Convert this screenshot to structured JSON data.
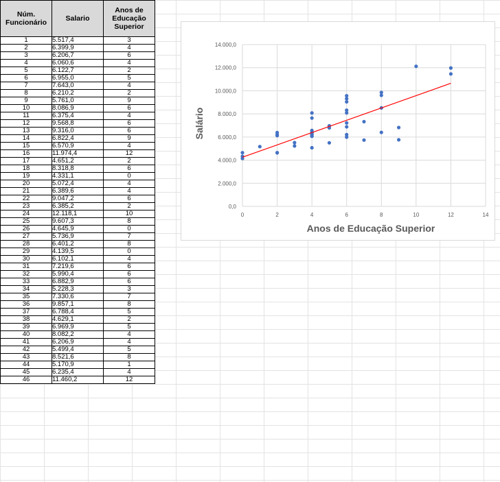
{
  "table": {
    "headers": [
      "Núm. Funcionário",
      "Salario",
      "Anos de Educação Superior"
    ],
    "rows": [
      [
        "1",
        "5.517,4",
        "3"
      ],
      [
        "2",
        "6.399,9",
        "4"
      ],
      [
        "3",
        "6.206,7",
        "6"
      ],
      [
        "4",
        "6.060,6",
        "4"
      ],
      [
        "5",
        "6.122,7",
        "2"
      ],
      [
        "6",
        "6.955,0",
        "5"
      ],
      [
        "7",
        "7.643,0",
        "4"
      ],
      [
        "8",
        "6.210,2",
        "2"
      ],
      [
        "9",
        "5.761,0",
        "9"
      ],
      [
        "10",
        "8.086,9",
        "6"
      ],
      [
        "11",
        "6.375,4",
        "4"
      ],
      [
        "12",
        "9.568,8",
        "6"
      ],
      [
        "13",
        "9.316,0",
        "6"
      ],
      [
        "14",
        "6.822,4",
        "9"
      ],
      [
        "15",
        "6.570,9",
        "4"
      ],
      [
        "16",
        "11.974,4",
        "12"
      ],
      [
        "17",
        "4.651,2",
        "2"
      ],
      [
        "18",
        "8.318,8",
        "6"
      ],
      [
        "19",
        "4.331,1",
        "0"
      ],
      [
        "20",
        "5.072,4",
        "4"
      ],
      [
        "21",
        "6.389,6",
        "4"
      ],
      [
        "22",
        "9.047,2",
        "6"
      ],
      [
        "23",
        "6.385,2",
        "2"
      ],
      [
        "24",
        "12.118,1",
        "10"
      ],
      [
        "25",
        "9.607,3",
        "8"
      ],
      [
        "26",
        "4.645,9",
        "0"
      ],
      [
        "27",
        "5.736,9",
        "7"
      ],
      [
        "28",
        "6.401,2",
        "8"
      ],
      [
        "29",
        "4.139,5",
        "0"
      ],
      [
        "30",
        "6.102,1",
        "4"
      ],
      [
        "31",
        "7.219,6",
        "6"
      ],
      [
        "32",
        "5.990,4",
        "6"
      ],
      [
        "33",
        "6.882,9",
        "6"
      ],
      [
        "34",
        "5.228,3",
        "3"
      ],
      [
        "35",
        "7.330,6",
        "7"
      ],
      [
        "36",
        "9.857,1",
        "8"
      ],
      [
        "37",
        "6.788,4",
        "5"
      ],
      [
        "38",
        "4.629,1",
        "2"
      ],
      [
        "39",
        "6.969,9",
        "5"
      ],
      [
        "40",
        "8.082,2",
        "4"
      ],
      [
        "41",
        "6.206,9",
        "4"
      ],
      [
        "42",
        "5.499,4",
        "5"
      ],
      [
        "43",
        "8.521,6",
        "8"
      ],
      [
        "44",
        "5.170,9",
        "1"
      ],
      [
        "45",
        "6.235,4",
        "4"
      ],
      [
        "46",
        "11.460,2",
        "12"
      ]
    ]
  },
  "chart_data": {
    "type": "scatter",
    "xlabel": "Anos de Educação Superior",
    "ylabel": "Salário",
    "xlim": [
      0,
      14
    ],
    "ylim": [
      0,
      14000
    ],
    "x_ticks": [
      0,
      2,
      4,
      6,
      8,
      10,
      12,
      14
    ],
    "x_tick_labels": [
      "0",
      "2",
      "4",
      "6",
      "8",
      "10",
      "12",
      "14"
    ],
    "y_ticks": [
      0,
      2000,
      4000,
      6000,
      8000,
      10000,
      12000,
      14000
    ],
    "y_tick_labels": [
      "0,0",
      "2.000,0",
      "4.000,0",
      "6.000,0",
      "8.000,0",
      "10.000,0",
      "12.000,0",
      "14.000,0"
    ],
    "grid": true,
    "series": [
      {
        "points": [
          [
            3,
            5517.4
          ],
          [
            4,
            6399.9
          ],
          [
            6,
            6206.7
          ],
          [
            4,
            6060.6
          ],
          [
            2,
            6122.7
          ],
          [
            5,
            6955.0
          ],
          [
            4,
            7643.0
          ],
          [
            2,
            6210.2
          ],
          [
            9,
            5761.0
          ],
          [
            6,
            8086.9
          ],
          [
            4,
            6375.4
          ],
          [
            6,
            9568.8
          ],
          [
            6,
            9316.0
          ],
          [
            9,
            6822.4
          ],
          [
            4,
            6570.9
          ],
          [
            12,
            11974.4
          ],
          [
            2,
            4651.2
          ],
          [
            6,
            8318.8
          ],
          [
            0,
            4331.1
          ],
          [
            4,
            5072.4
          ],
          [
            4,
            6389.6
          ],
          [
            6,
            9047.2
          ],
          [
            2,
            6385.2
          ],
          [
            10,
            12118.1
          ],
          [
            8,
            9607.3
          ],
          [
            0,
            4645.9
          ],
          [
            7,
            5736.9
          ],
          [
            8,
            6401.2
          ],
          [
            0,
            4139.5
          ],
          [
            4,
            6102.1
          ],
          [
            6,
            7219.6
          ],
          [
            6,
            5990.4
          ],
          [
            6,
            6882.9
          ],
          [
            3,
            5228.3
          ],
          [
            7,
            7330.6
          ],
          [
            8,
            9857.1
          ],
          [
            5,
            6788.4
          ],
          [
            2,
            4629.1
          ],
          [
            5,
            6969.9
          ],
          [
            4,
            8082.2
          ],
          [
            4,
            6206.9
          ],
          [
            5,
            5499.4
          ],
          [
            8,
            8521.6
          ],
          [
            1,
            5170.9
          ],
          [
            4,
            6235.4
          ],
          [
            12,
            11460.2
          ]
        ],
        "color": "#4472c4"
      }
    ],
    "trendline": {
      "type": "linear",
      "from": [
        0,
        4250
      ],
      "to": [
        12,
        10650
      ],
      "color": "#ff0000"
    }
  }
}
